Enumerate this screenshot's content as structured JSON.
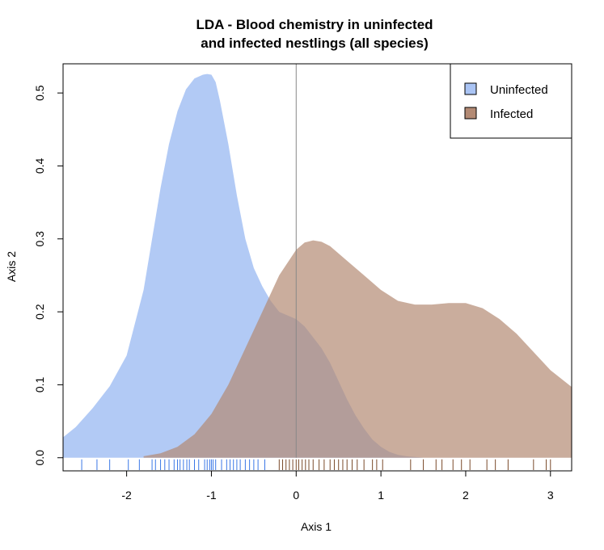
{
  "chart_data": {
    "type": "area",
    "title": "LDA - Blood chemistry in uninfected",
    "subtitle": "and infected nestlings (all species)",
    "xlabel": "Axis 1",
    "ylabel": "Axis 2",
    "xlim": [
      -2.75,
      3.25
    ],
    "ylim": [
      -0.018,
      0.54
    ],
    "x_ticks": [
      -2,
      -1,
      0,
      1,
      2,
      3
    ],
    "y_ticks": [
      0.0,
      0.1,
      0.2,
      0.3,
      0.4,
      0.5
    ],
    "x_tick_labels": [
      "-2",
      "-1",
      "0",
      "1",
      "2",
      "3"
    ],
    "y_tick_labels": [
      "0.0",
      "0.1",
      "0.2",
      "0.3",
      "0.4",
      "0.5"
    ],
    "vline_x": 0,
    "legend_position": "top-right",
    "series": [
      {
        "name": "Uninfected",
        "color": "#aac4f4",
        "rug_color": "#3b78e6",
        "x": [
          -2.75,
          -2.6,
          -2.4,
          -2.2,
          -2.0,
          -1.8,
          -1.7,
          -1.6,
          -1.5,
          -1.4,
          -1.3,
          -1.2,
          -1.1,
          -1.05,
          -1.0,
          -0.95,
          -0.9,
          -0.8,
          -0.7,
          -0.6,
          -0.5,
          -0.4,
          -0.3,
          -0.2,
          -0.1,
          0.0,
          0.1,
          0.2,
          0.3,
          0.4,
          0.5,
          0.6,
          0.7,
          0.8,
          0.9,
          1.0,
          1.1,
          1.2,
          1.3,
          1.4,
          1.5
        ],
        "y": [
          0.028,
          0.042,
          0.068,
          0.098,
          0.14,
          0.23,
          0.3,
          0.37,
          0.43,
          0.475,
          0.505,
          0.52,
          0.525,
          0.526,
          0.525,
          0.515,
          0.49,
          0.43,
          0.36,
          0.3,
          0.26,
          0.235,
          0.215,
          0.2,
          0.195,
          0.19,
          0.18,
          0.165,
          0.15,
          0.13,
          0.105,
          0.08,
          0.058,
          0.04,
          0.025,
          0.015,
          0.008,
          0.004,
          0.002,
          0.001,
          0.0
        ]
      },
      {
        "name": "Infected",
        "color": "#b38a74",
        "rug_color": "#7a4a2a",
        "x": [
          -1.8,
          -1.6,
          -1.4,
          -1.2,
          -1.0,
          -0.8,
          -0.6,
          -0.4,
          -0.2,
          0.0,
          0.1,
          0.2,
          0.3,
          0.4,
          0.6,
          0.8,
          1.0,
          1.2,
          1.4,
          1.6,
          1.8,
          2.0,
          2.2,
          2.4,
          2.6,
          2.8,
          3.0,
          3.25
        ],
        "y": [
          0.002,
          0.006,
          0.015,
          0.032,
          0.06,
          0.1,
          0.15,
          0.2,
          0.25,
          0.285,
          0.295,
          0.298,
          0.296,
          0.29,
          0.27,
          0.25,
          0.23,
          0.215,
          0.21,
          0.21,
          0.212,
          0.212,
          0.205,
          0.19,
          0.17,
          0.145,
          0.12,
          0.097
        ]
      }
    ],
    "rug": {
      "uninfected": [
        -2.53,
        -2.35,
        -2.2,
        -1.98,
        -1.85,
        -1.7,
        -1.66,
        -1.6,
        -1.55,
        -1.5,
        -1.44,
        -1.4,
        -1.37,
        -1.33,
        -1.29,
        -1.26,
        -1.2,
        -1.15,
        -1.08,
        -1.05,
        -1.02,
        -1.0,
        -0.98,
        -0.95,
        -0.88,
        -0.82,
        -0.78,
        -0.74,
        -0.7,
        -0.66,
        -0.6,
        -0.55,
        -0.5,
        -0.45,
        -0.37
      ],
      "infected": [
        -0.2,
        -0.16,
        -0.12,
        -0.08,
        -0.04,
        0.0,
        0.03,
        0.07,
        0.11,
        0.15,
        0.2,
        0.27,
        0.33,
        0.4,
        0.45,
        0.5,
        0.55,
        0.6,
        0.66,
        0.72,
        0.8,
        0.9,
        0.95,
        1.02,
        1.35,
        1.5,
        1.65,
        1.72,
        1.85,
        1.95,
        2.05,
        2.25,
        2.35,
        2.5,
        2.8,
        2.95,
        3.0
      ]
    }
  }
}
